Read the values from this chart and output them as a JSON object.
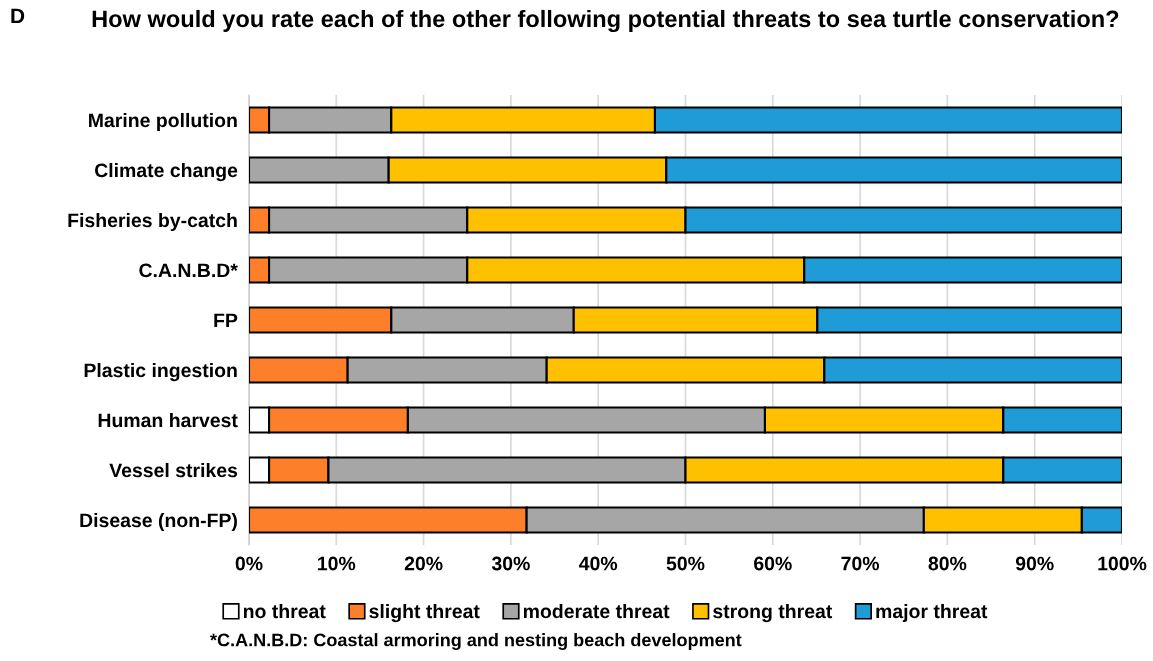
{
  "chart_data": {
    "type": "bar",
    "orientation": "horizontal",
    "stacked": true,
    "title": "How would you rate each of the other following potential threats to sea turtle conservation?",
    "categories": [
      "Marine pollution",
      "Climate change",
      "Fisheries by-catch",
      "C.A.N.B.D*",
      "FP",
      "Plastic ingestion",
      "Human harvest",
      "Vessel strikes",
      "Disease (non-FP)"
    ],
    "series": [
      {
        "name": "no threat",
        "color": "#ffffff",
        "values": [
          0,
          0,
          0,
          0,
          0,
          0,
          2.3,
          2.3,
          0
        ]
      },
      {
        "name": "slight threat",
        "color": "#fd7f2a",
        "values": [
          2.3,
          0,
          2.3,
          2.3,
          16.3,
          11.3,
          15.9,
          6.8,
          31.8
        ]
      },
      {
        "name": "moderate threat",
        "color": "#a6a6a6",
        "values": [
          14.0,
          16.0,
          22.7,
          22.7,
          20.9,
          22.8,
          40.9,
          40.9,
          45.5
        ]
      },
      {
        "name": "strong threat",
        "color": "#ffc000",
        "values": [
          30.2,
          31.8,
          25.0,
          38.6,
          27.9,
          31.8,
          27.3,
          36.4,
          18.1
        ]
      },
      {
        "name": "major threat",
        "color": "#1f9bd7",
        "values": [
          53.5,
          52.2,
          50.0,
          36.4,
          34.9,
          34.1,
          13.6,
          13.6,
          4.6
        ]
      }
    ],
    "xlim": [
      0,
      100
    ],
    "xticks": [
      {
        "value": 0,
        "label": "0%"
      },
      {
        "value": 10,
        "label": "10%"
      },
      {
        "value": 20,
        "label": "20%"
      },
      {
        "value": 30,
        "label": "30%"
      },
      {
        "value": 40,
        "label": "40%"
      },
      {
        "value": 50,
        "label": "50%"
      },
      {
        "value": 60,
        "label": "60%"
      },
      {
        "value": 70,
        "label": "70%"
      },
      {
        "value": 80,
        "label": "80%"
      },
      {
        "value": 90,
        "label": "90%"
      },
      {
        "value": 100,
        "label": "100%"
      }
    ],
    "grid": "x",
    "legend": "bottom",
    "annotations": [
      "D",
      "*C.A.N.B.D: Coastal armoring and nesting beach development"
    ]
  }
}
